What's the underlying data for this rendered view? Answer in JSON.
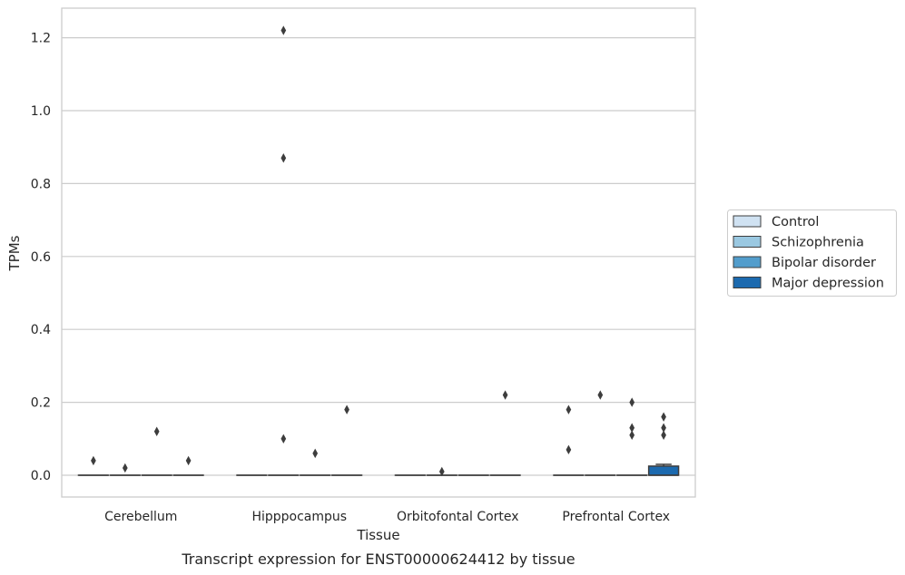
{
  "chart_data": {
    "type": "box",
    "caption": "Transcript expression for ENST00000624412 by tissue",
    "xlabel": "Tissue",
    "ylabel": "TPMs",
    "ylim": [
      -0.06,
      1.28
    ],
    "yticks": [
      "0.0",
      "0.2",
      "0.4",
      "0.6",
      "0.8",
      "1.0",
      "1.2"
    ],
    "grid": true,
    "legend_position": "right",
    "categories": [
      "Cerebellum",
      "Hipppocampus",
      "Orbitofontal Cortex",
      "Prefrontal Cortex"
    ],
    "series": [
      {
        "name": "Control",
        "color": "#d0e2f2"
      },
      {
        "name": "Schizophrenia",
        "color": "#9ac8e1"
      },
      {
        "name": "Bipolar disorder",
        "color": "#529dcc"
      },
      {
        "name": "Major depression",
        "color": "#1c6aaf"
      }
    ],
    "boxes": [
      {
        "category": "Cerebellum",
        "series": "Control",
        "q1": 0,
        "median": 0,
        "q3": 0,
        "whisker_low": 0,
        "whisker_high": 0,
        "outliers": [
          0.04
        ]
      },
      {
        "category": "Cerebellum",
        "series": "Schizophrenia",
        "q1": 0,
        "median": 0,
        "q3": 0,
        "whisker_low": 0,
        "whisker_high": 0,
        "outliers": [
          0.02
        ]
      },
      {
        "category": "Cerebellum",
        "series": "Bipolar disorder",
        "q1": 0,
        "median": 0,
        "q3": 0,
        "whisker_low": 0,
        "whisker_high": 0,
        "outliers": [
          0.12
        ]
      },
      {
        "category": "Cerebellum",
        "series": "Major depression",
        "q1": 0,
        "median": 0,
        "q3": 0,
        "whisker_low": 0,
        "whisker_high": 0,
        "outliers": [
          0.04
        ]
      },
      {
        "category": "Hipppocampus",
        "series": "Control",
        "q1": 0,
        "median": 0,
        "q3": 0,
        "whisker_low": 0,
        "whisker_high": 0,
        "outliers": []
      },
      {
        "category": "Hipppocampus",
        "series": "Schizophrenia",
        "q1": 0,
        "median": 0,
        "q3": 0,
        "whisker_low": 0,
        "whisker_high": 0,
        "outliers": [
          1.22,
          0.87,
          0.1
        ]
      },
      {
        "category": "Hipppocampus",
        "series": "Bipolar disorder",
        "q1": 0,
        "median": 0,
        "q3": 0,
        "whisker_low": 0,
        "whisker_high": 0,
        "outliers": [
          0.06
        ]
      },
      {
        "category": "Hipppocampus",
        "series": "Major depression",
        "q1": 0,
        "median": 0,
        "q3": 0,
        "whisker_low": 0,
        "whisker_high": 0,
        "outliers": [
          0.18
        ]
      },
      {
        "category": "Orbitofontal Cortex",
        "series": "Control",
        "q1": 0,
        "median": 0,
        "q3": 0,
        "whisker_low": 0,
        "whisker_high": 0,
        "outliers": []
      },
      {
        "category": "Orbitofontal Cortex",
        "series": "Schizophrenia",
        "q1": 0,
        "median": 0,
        "q3": 0,
        "whisker_low": 0,
        "whisker_high": 0,
        "outliers": [
          0.01
        ]
      },
      {
        "category": "Orbitofontal Cortex",
        "series": "Bipolar disorder",
        "q1": 0,
        "median": 0,
        "q3": 0,
        "whisker_low": 0,
        "whisker_high": 0,
        "outliers": []
      },
      {
        "category": "Orbitofontal Cortex",
        "series": "Major depression",
        "q1": 0,
        "median": 0,
        "q3": 0,
        "whisker_low": 0,
        "whisker_high": 0,
        "outliers": [
          0.22
        ]
      },
      {
        "category": "Prefrontal Cortex",
        "series": "Control",
        "q1": 0,
        "median": 0,
        "q3": 0,
        "whisker_low": 0,
        "whisker_high": 0,
        "outliers": [
          0.18,
          0.07
        ]
      },
      {
        "category": "Prefrontal Cortex",
        "series": "Schizophrenia",
        "q1": 0,
        "median": 0,
        "q3": 0,
        "whisker_low": 0,
        "whisker_high": 0,
        "outliers": [
          0.22
        ]
      },
      {
        "category": "Prefrontal Cortex",
        "series": "Bipolar disorder",
        "q1": 0,
        "median": 0,
        "q3": 0,
        "whisker_low": 0,
        "whisker_high": 0,
        "outliers": [
          0.2,
          0.13,
          0.11
        ]
      },
      {
        "category": "Prefrontal Cortex",
        "series": "Major depression",
        "q1": 0,
        "median": 0,
        "q3": 0.025,
        "whisker_low": 0,
        "whisker_high": 0.03,
        "outliers": [
          0.16,
          0.13,
          0.11
        ]
      }
    ]
  }
}
